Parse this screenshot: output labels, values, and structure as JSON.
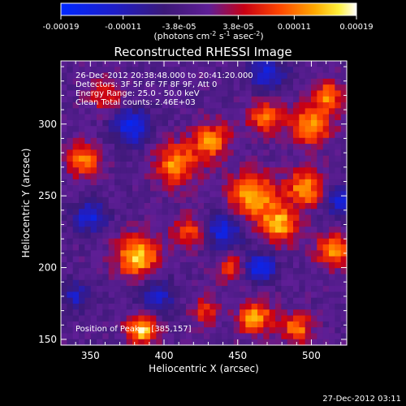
{
  "chart_data": {
    "type": "heatmap",
    "title": "Reconstructed RHESSI Image",
    "xlabel": "Heliocentric X (arcsec)",
    "ylabel": "Heliocentric Y (arcsec)",
    "xlim": [
      330,
      524
    ],
    "ylim": [
      146,
      344
    ],
    "x_ticks": [
      350,
      400,
      450,
      500
    ],
    "y_ticks": [
      150,
      200,
      250,
      300
    ],
    "x_tick_labels": [
      "350",
      "400",
      "450",
      "500"
    ],
    "y_tick_labels": [
      "150",
      "200",
      "250",
      "300"
    ],
    "colorbar": {
      "vmin": -0.00019,
      "vmax": 0.00019,
      "ticks": [
        -0.00019,
        -0.00011,
        -3.8e-05,
        3.8e-05,
        0.00011,
        0.00019
      ],
      "tick_labels": [
        "-0.00019",
        "-0.00011",
        "-3.8e-05",
        "3.8e-05",
        "0.00011",
        "0.00019"
      ],
      "units_label": "(photons cm",
      "units_sup1": "-2",
      "units_mid": " s",
      "units_sup2": "-1",
      "units_end": " asec",
      "units_sup3": "-2",
      "units_close": ")"
    },
    "annotations": [
      "26-Dec-2012 20:38:48.000 to 20:41:20.000",
      "Detectors: 3F 5F 6F 7F 8F 9F, Att 0",
      "Energy Range: 25.0 - 50.0 keV",
      "Clean     Total counts: 2.46E+03"
    ],
    "position_label": "Position of Peak = [385,157]",
    "image_grid_size": [
      48,
      48
    ],
    "hotspots": [
      {
        "x": 385,
        "y": 157,
        "value": 0.00019,
        "sigma": 7
      },
      {
        "x": 382,
        "y": 208,
        "value": 0.00018,
        "sigma": 10
      },
      {
        "x": 460,
        "y": 250,
        "value": 0.00017,
        "sigma": 11
      },
      {
        "x": 478,
        "y": 230,
        "value": 0.00016,
        "sigma": 9
      },
      {
        "x": 500,
        "y": 300,
        "value": 0.00015,
        "sigma": 10
      },
      {
        "x": 496,
        "y": 255,
        "value": 0.00015,
        "sigma": 9
      },
      {
        "x": 408,
        "y": 272,
        "value": 0.00015,
        "sigma": 10
      },
      {
        "x": 432,
        "y": 288,
        "value": 0.00014,
        "sigma": 9
      },
      {
        "x": 468,
        "y": 305,
        "value": 0.00013,
        "sigma": 8
      },
      {
        "x": 462,
        "y": 165,
        "value": 0.00016,
        "sigma": 8
      },
      {
        "x": 490,
        "y": 158,
        "value": 0.00014,
        "sigma": 7
      },
      {
        "x": 515,
        "y": 212,
        "value": 0.00015,
        "sigma": 8
      },
      {
        "x": 512,
        "y": 320,
        "value": 0.00013,
        "sigma": 7
      },
      {
        "x": 345,
        "y": 275,
        "value": 0.00014,
        "sigma": 8
      },
      {
        "x": 418,
        "y": 225,
        "value": 0.00011,
        "sigma": 8
      },
      {
        "x": 445,
        "y": 200,
        "value": 0.0001,
        "sigma": 7
      },
      {
        "x": 360,
        "y": 320,
        "value": 9e-05,
        "sigma": 8
      },
      {
        "x": 428,
        "y": 170,
        "value": 9e-05,
        "sigma": 7
      },
      {
        "x": 350,
        "y": 235,
        "value": -0.00012,
        "sigma": 8
      },
      {
        "x": 378,
        "y": 298,
        "value": -0.00014,
        "sigma": 9
      },
      {
        "x": 440,
        "y": 225,
        "value": -0.00013,
        "sigma": 9
      },
      {
        "x": 465,
        "y": 200,
        "value": -0.00016,
        "sigma": 7
      },
      {
        "x": 520,
        "y": 245,
        "value": -0.00011,
        "sigma": 8
      },
      {
        "x": 395,
        "y": 180,
        "value": -0.0001,
        "sigma": 9
      },
      {
        "x": 470,
        "y": 335,
        "value": -0.00012,
        "sigma": 9
      },
      {
        "x": 340,
        "y": 180,
        "value": -9e-05,
        "sigma": 7
      }
    ]
  },
  "footer": {
    "timestamp": "27-Dec-2012 03:11"
  }
}
